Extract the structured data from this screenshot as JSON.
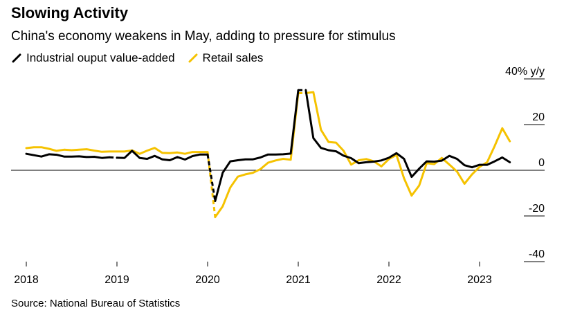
{
  "header": {
    "title": "Slowing Activity",
    "subtitle": "China's economy weakens in May, adding to pressure for stimulus"
  },
  "legend": [
    {
      "label": "Industrial ouput value-added",
      "color": "#000000",
      "icon": "slash-line-icon"
    },
    {
      "label": "Retail sales",
      "color": "#F5C200",
      "icon": "slash-line-icon"
    }
  ],
  "footer": {
    "source": "Source: National Bureau of Statistics"
  },
  "chart_data": {
    "type": "line",
    "title": "Slowing Activity",
    "subtitle": "China's economy weakens in May, adding to pressure for stimulus",
    "ylabel": "",
    "y_unit_label": "40% y/y",
    "ylim": [
      -40,
      40
    ],
    "yticks": [
      40,
      20,
      0,
      -20,
      -40
    ],
    "ytick_labels": [
      "40% y/y",
      "20",
      "0",
      "-20",
      "-40"
    ],
    "xlim": [
      "2018-01",
      "2023-06"
    ],
    "xticks": [
      "2018",
      "2019",
      "2020",
      "2021",
      "2022",
      "2023"
    ],
    "grid": false,
    "legend_position": "top-left",
    "series": [
      {
        "name": "Industrial ouput value-added",
        "color": "#000000",
        "points": [
          [
            "2018-01",
            7.2
          ],
          [
            "2018-02",
            6.6
          ],
          [
            "2018-03",
            6.0
          ],
          [
            "2018-04",
            7.0
          ],
          [
            "2018-05",
            6.8
          ],
          [
            "2018-06",
            6.0
          ],
          [
            "2018-07",
            6.0
          ],
          [
            "2018-08",
            6.1
          ],
          [
            "2018-09",
            5.8
          ],
          [
            "2018-10",
            5.9
          ],
          [
            "2018-11",
            5.4
          ],
          [
            "2018-12",
            5.7
          ],
          [
            "2019-01",
            5.5
          ],
          [
            "2019-02",
            5.4
          ],
          [
            "2019-03",
            8.5
          ],
          [
            "2019-04",
            5.4
          ],
          [
            "2019-05",
            5.0
          ],
          [
            "2019-06",
            6.3
          ],
          [
            "2019-07",
            4.8
          ],
          [
            "2019-08",
            4.4
          ],
          [
            "2019-09",
            5.8
          ],
          [
            "2019-10",
            4.7
          ],
          [
            "2019-11",
            6.2
          ],
          [
            "2019-12",
            6.9
          ],
          [
            "2020-01",
            6.9
          ],
          [
            "2020-02",
            -13.5
          ],
          [
            "2020-03",
            -1.1
          ],
          [
            "2020-04",
            3.9
          ],
          [
            "2020-05",
            4.4
          ],
          [
            "2020-06",
            4.8
          ],
          [
            "2020-07",
            4.8
          ],
          [
            "2020-08",
            5.6
          ],
          [
            "2020-09",
            6.9
          ],
          [
            "2020-10",
            6.9
          ],
          [
            "2020-11",
            7.0
          ],
          [
            "2020-12",
            7.3
          ],
          [
            "2021-01",
            35.1
          ],
          [
            "2021-02",
            35.1
          ],
          [
            "2021-03",
            14.1
          ],
          [
            "2021-04",
            9.8
          ],
          [
            "2021-05",
            8.8
          ],
          [
            "2021-06",
            8.3
          ],
          [
            "2021-07",
            6.4
          ],
          [
            "2021-08",
            5.3
          ],
          [
            "2021-09",
            3.1
          ],
          [
            "2021-10",
            3.5
          ],
          [
            "2021-11",
            3.8
          ],
          [
            "2021-12",
            4.3
          ],
          [
            "2022-01",
            5.5
          ],
          [
            "2022-02",
            7.5
          ],
          [
            "2022-03",
            5.0
          ],
          [
            "2022-04",
            -2.9
          ],
          [
            "2022-05",
            0.7
          ],
          [
            "2022-06",
            3.9
          ],
          [
            "2022-07",
            3.8
          ],
          [
            "2022-08",
            4.2
          ],
          [
            "2022-09",
            6.3
          ],
          [
            "2022-10",
            5.0
          ],
          [
            "2022-11",
            2.2
          ],
          [
            "2022-12",
            1.3
          ],
          [
            "2023-01",
            2.4
          ],
          [
            "2023-02",
            2.4
          ],
          [
            "2023-03",
            3.9
          ],
          [
            "2023-04",
            5.6
          ],
          [
            "2023-05",
            3.5
          ]
        ],
        "dashed_ranges": [
          [
            "2018-12",
            "2019-01"
          ],
          [
            "2020-01",
            "2020-02"
          ],
          [
            "2021-01",
            "2021-02"
          ]
        ]
      },
      {
        "name": "Retail sales",
        "color": "#F5C200",
        "points": [
          [
            "2018-01",
            9.7
          ],
          [
            "2018-02",
            10.1
          ],
          [
            "2018-03",
            10.1
          ],
          [
            "2018-04",
            9.4
          ],
          [
            "2018-05",
            8.5
          ],
          [
            "2018-06",
            9.0
          ],
          [
            "2018-07",
            8.8
          ],
          [
            "2018-08",
            9.0
          ],
          [
            "2018-09",
            9.2
          ],
          [
            "2018-10",
            8.6
          ],
          [
            "2018-11",
            8.1
          ],
          [
            "2018-12",
            8.2
          ],
          [
            "2019-01",
            8.2
          ],
          [
            "2019-02",
            8.2
          ],
          [
            "2019-03",
            8.7
          ],
          [
            "2019-04",
            7.2
          ],
          [
            "2019-05",
            8.6
          ],
          [
            "2019-06",
            9.8
          ],
          [
            "2019-07",
            7.6
          ],
          [
            "2019-08",
            7.5
          ],
          [
            "2019-09",
            7.8
          ],
          [
            "2019-10",
            7.2
          ],
          [
            "2019-11",
            8.0
          ],
          [
            "2019-12",
            8.0
          ],
          [
            "2020-01",
            8.0
          ],
          [
            "2020-02",
            -20.5
          ],
          [
            "2020-03",
            -15.8
          ],
          [
            "2020-04",
            -7.5
          ],
          [
            "2020-05",
            -2.8
          ],
          [
            "2020-06",
            -1.8
          ],
          [
            "2020-07",
            -1.1
          ],
          [
            "2020-08",
            0.5
          ],
          [
            "2020-09",
            3.3
          ],
          [
            "2020-10",
            4.3
          ],
          [
            "2020-11",
            5.0
          ],
          [
            "2020-12",
            4.6
          ],
          [
            "2021-01",
            33.8
          ],
          [
            "2021-02",
            33.8
          ],
          [
            "2021-03",
            34.2
          ],
          [
            "2021-04",
            17.7
          ],
          [
            "2021-05",
            12.4
          ],
          [
            "2021-06",
            12.1
          ],
          [
            "2021-07",
            8.5
          ],
          [
            "2021-08",
            2.5
          ],
          [
            "2021-09",
            4.4
          ],
          [
            "2021-10",
            4.9
          ],
          [
            "2021-11",
            3.9
          ],
          [
            "2021-12",
            1.7
          ],
          [
            "2022-01",
            4.9
          ],
          [
            "2022-02",
            6.7
          ],
          [
            "2022-03",
            -3.5
          ],
          [
            "2022-04",
            -11.1
          ],
          [
            "2022-05",
            -6.7
          ],
          [
            "2022-06",
            3.1
          ],
          [
            "2022-07",
            2.7
          ],
          [
            "2022-08",
            5.4
          ],
          [
            "2022-09",
            2.5
          ],
          [
            "2022-10",
            -0.5
          ],
          [
            "2022-11",
            -5.9
          ],
          [
            "2022-12",
            -1.8
          ],
          [
            "2023-01",
            1.5
          ],
          [
            "2023-02",
            3.5
          ],
          [
            "2023-03",
            10.6
          ],
          [
            "2023-04",
            18.4
          ],
          [
            "2023-05",
            12.7
          ]
        ],
        "dashed_ranges": [
          [
            "2020-01",
            "2020-02"
          ],
          [
            "2021-01",
            "2021-02"
          ]
        ]
      }
    ]
  }
}
